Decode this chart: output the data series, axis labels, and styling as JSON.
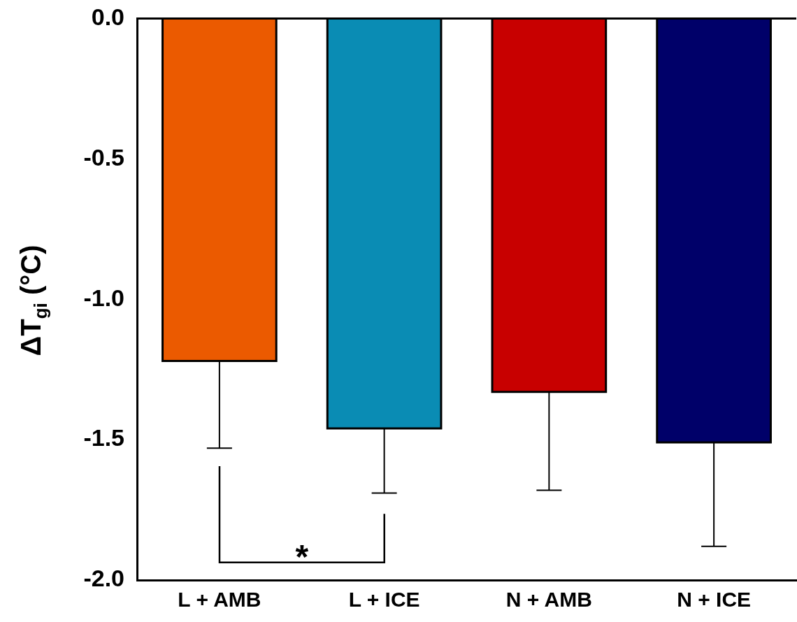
{
  "chart_data": {
    "type": "bar",
    "ylabel": "ΔT$_{gi}$ (°C)",
    "categories": [
      "L + AMB",
      "L + ICE",
      "N + AMB",
      "N + ICE"
    ],
    "values": [
      -1.22,
      -1.46,
      -1.33,
      -1.51
    ],
    "colors": [
      "#eb5a00",
      "#0a8cb4",
      "#c80000",
      "#000069"
    ],
    "errors": [
      [
        -1.53,
        -1.22
      ],
      [
        -1.69,
        -1.46
      ],
      [
        -1.68,
        -1.33
      ],
      [
        -1.88,
        -1.51
      ]
    ],
    "ylim": [
      -2.0,
      0.0
    ],
    "yticks": [
      {
        "value": -2.0,
        "label": "-2.0"
      },
      {
        "value": -1.5,
        "label": "-1.5"
      },
      {
        "value": -1.0,
        "label": "-1.0"
      },
      {
        "value": -0.5,
        "label": "-0.5"
      },
      {
        "value": 0,
        "label": "0.0"
      }
    ],
    "annotations": [
      "*"
    ],
    "grid": false,
    "legend": false
  }
}
